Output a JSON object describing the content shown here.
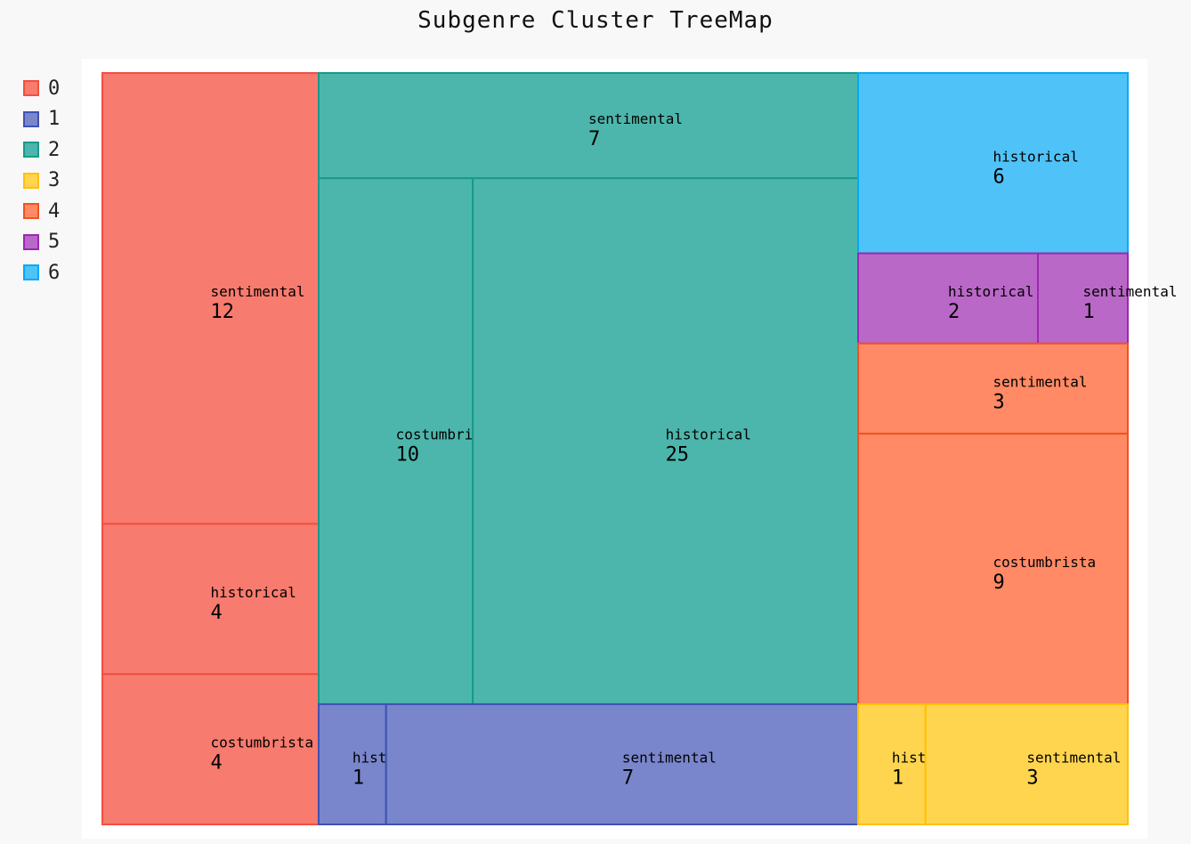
{
  "chart_data": {
    "type": "treemap",
    "title": "Subgenre Cluster TreeMap",
    "legend_position": "top-left",
    "clusters": [
      {
        "name": "0",
        "fill": "#f77b6e",
        "stroke": "#f24f40",
        "children": [
          {
            "label": "sentimental",
            "value": 12
          },
          {
            "label": "historical",
            "value": 4
          },
          {
            "label": "costumbrista",
            "value": 4
          }
        ]
      },
      {
        "name": "1",
        "fill": "#7986cb",
        "stroke": "#3f51b5",
        "children": [
          {
            "label": "historical",
            "value": 1
          },
          {
            "label": "sentimental",
            "value": 7
          }
        ]
      },
      {
        "name": "2",
        "fill": "#4db6ac",
        "stroke": "#179a8a",
        "children": [
          {
            "label": "sentimental",
            "value": 7
          },
          {
            "label": "costumbrista",
            "value": 10
          },
          {
            "label": "historical",
            "value": 25
          }
        ]
      },
      {
        "name": "3",
        "fill": "#ffd54f",
        "stroke": "#ffc107",
        "children": [
          {
            "label": "historical",
            "value": 1
          },
          {
            "label": "sentimental",
            "value": 3
          }
        ]
      },
      {
        "name": "4",
        "fill": "#ff8a65",
        "stroke": "#f4511e",
        "children": [
          {
            "label": "sentimental",
            "value": 3
          },
          {
            "label": "costumbrista",
            "value": 9
          }
        ]
      },
      {
        "name": "5",
        "fill": "#ba68c8",
        "stroke": "#9c27b0",
        "children": [
          {
            "label": "historical",
            "value": 2
          },
          {
            "label": "sentimental",
            "value": 1
          }
        ]
      },
      {
        "name": "6",
        "fill": "#4fc3f7",
        "stroke": "#03a9f4",
        "children": [
          {
            "label": "historical",
            "value": 6
          }
        ]
      }
    ]
  }
}
